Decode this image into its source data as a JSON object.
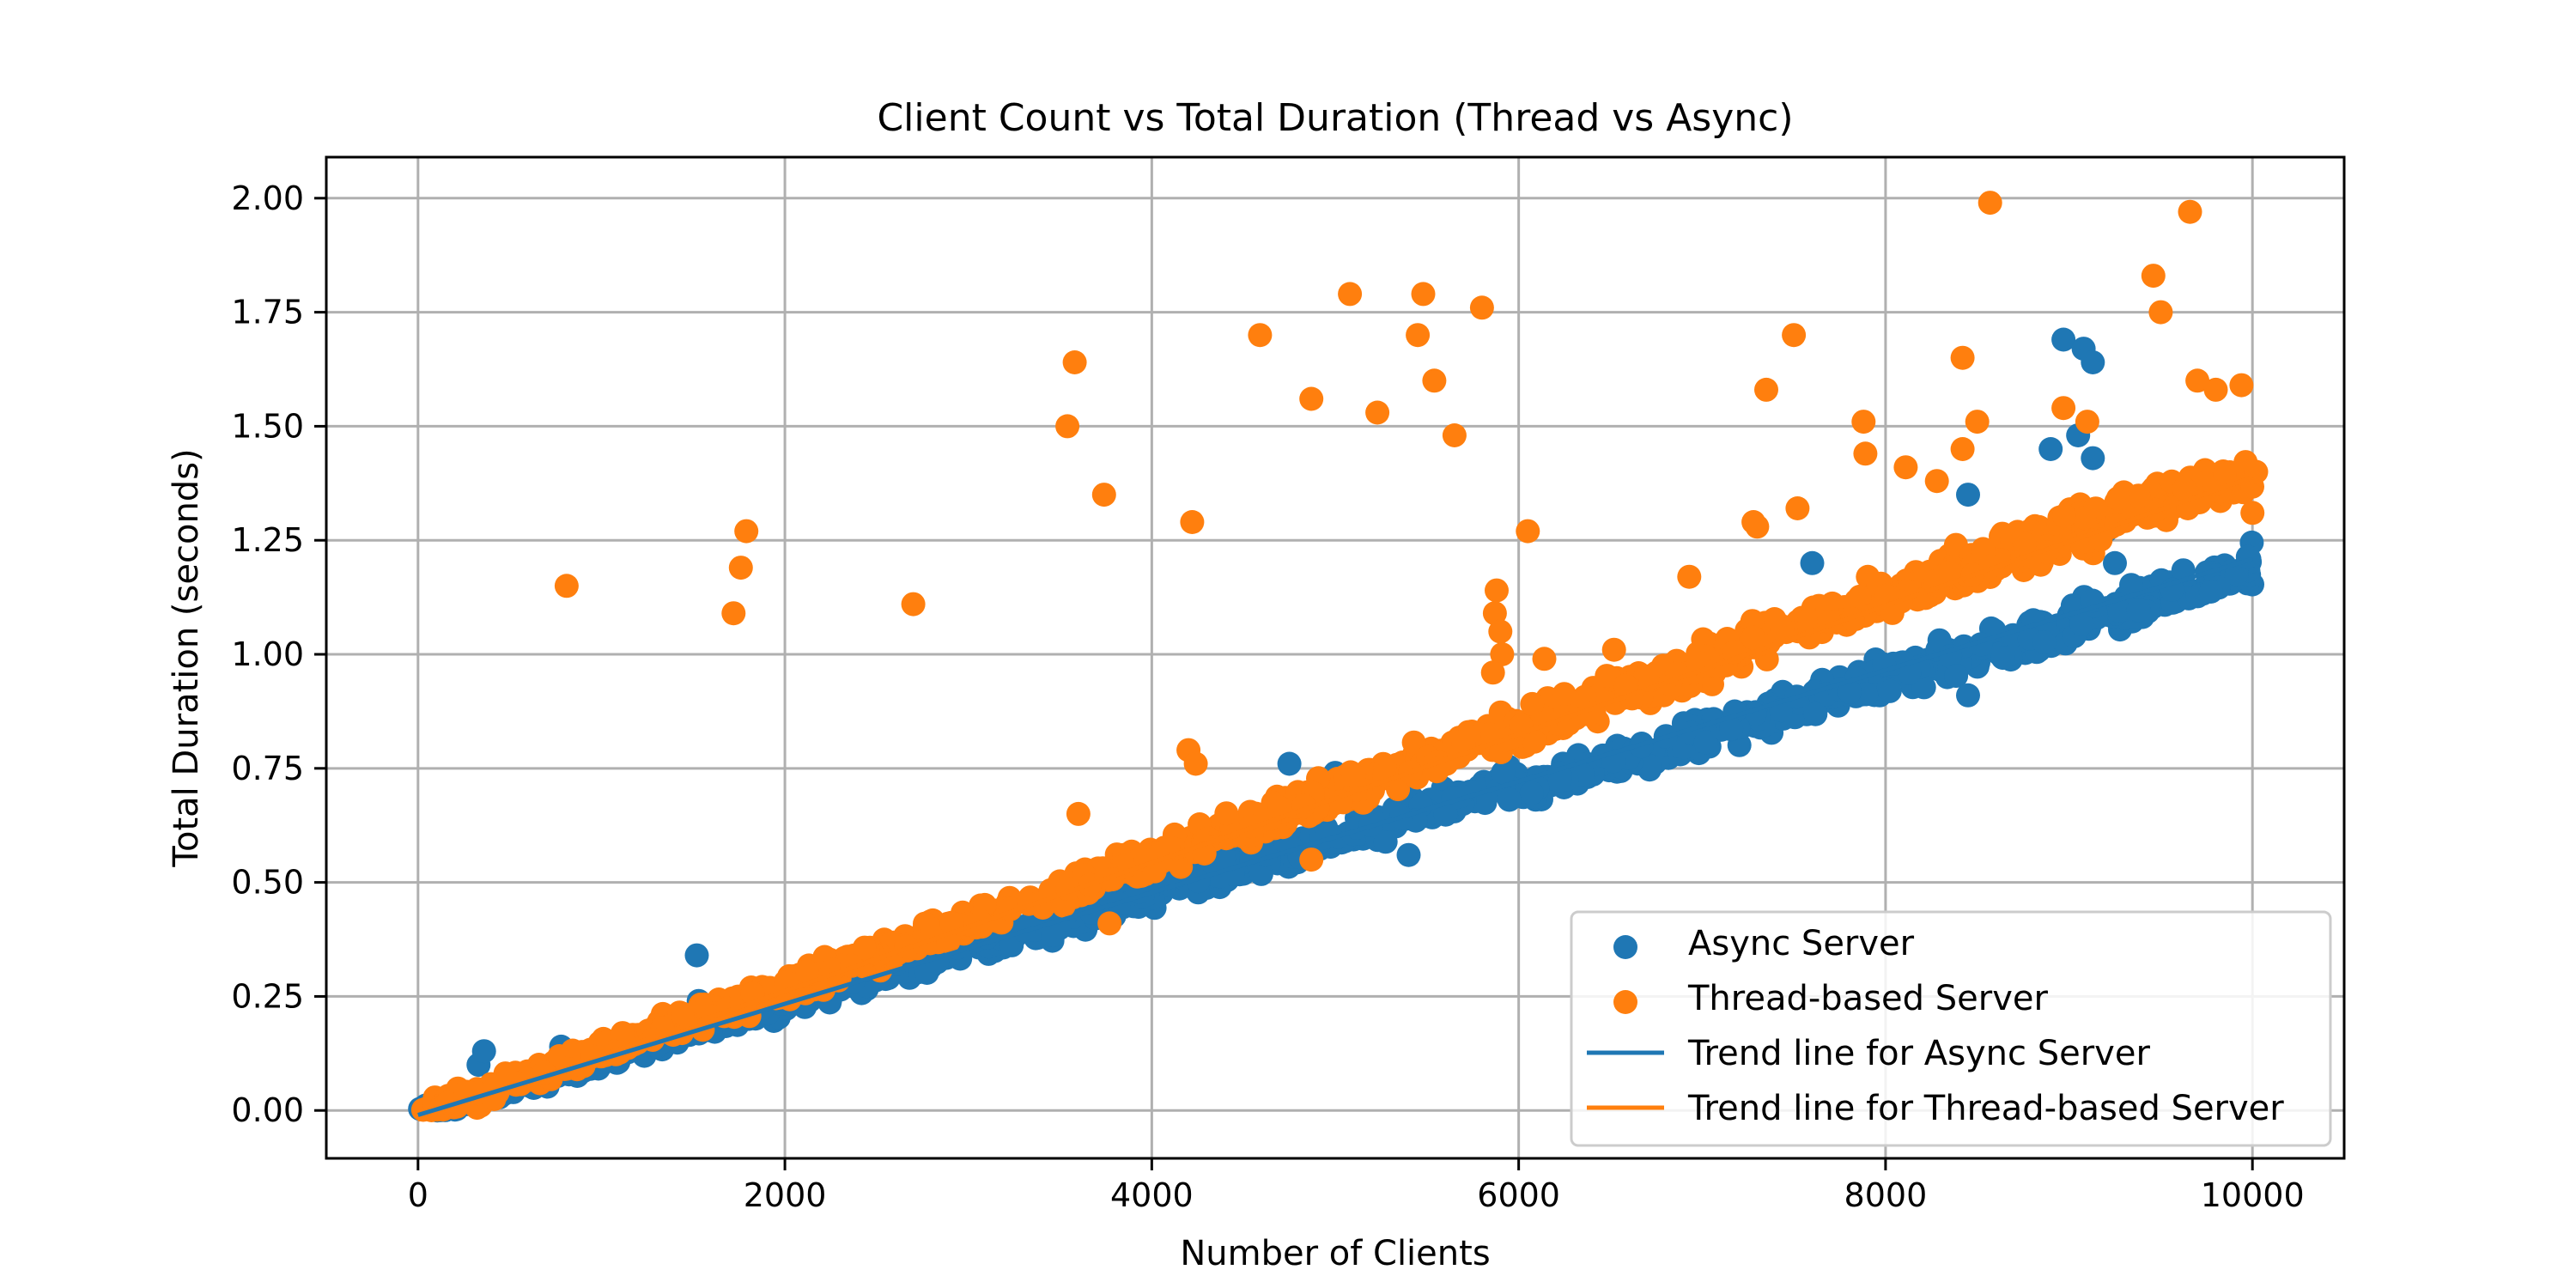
{
  "chart_data": {
    "type": "scatter",
    "title": "Client Count vs Total Duration (Thread vs Async)",
    "xlabel": "Number of Clients",
    "ylabel": "Total Duration (seconds)",
    "xlim": [
      -500,
      10500
    ],
    "ylim": [
      -0.105,
      2.09
    ],
    "x_ticks": [
      0,
      2000,
      4000,
      6000,
      8000,
      10000
    ],
    "x_tick_labels": [
      "0",
      "2000",
      "4000",
      "6000",
      "8000",
      "10000"
    ],
    "y_ticks": [
      0.0,
      0.25,
      0.5,
      0.75,
      1.0,
      1.25,
      1.5,
      1.75,
      2.0
    ],
    "y_tick_labels": [
      "0.00",
      "0.25",
      "0.50",
      "0.75",
      "1.00",
      "1.25",
      "1.50",
      "1.75",
      "2.00"
    ],
    "grid": true,
    "legend_position": "lower-right",
    "series": [
      {
        "name": "Async Server",
        "kind": "scatter",
        "color": "#1f77b4",
        "trend_slope": 0.0001219,
        "trend_intercept": -0.01,
        "band_spread": 0.018,
        "band_drift": 2e-06,
        "outliers": [
          [
            330,
            0.1
          ],
          [
            360,
            0.13
          ],
          [
            780,
            0.14
          ],
          [
            1520,
            0.34
          ],
          [
            1530,
            0.24
          ],
          [
            4750,
            0.76
          ],
          [
            5000,
            0.74
          ],
          [
            4950,
            0.62
          ],
          [
            5400,
            0.56
          ],
          [
            7600,
            1.2
          ],
          [
            8450,
            0.91
          ],
          [
            8450,
            1.35
          ],
          [
            8900,
            1.45
          ],
          [
            8970,
            1.69
          ],
          [
            9080,
            1.67
          ],
          [
            9130,
            1.64
          ],
          [
            9130,
            1.43
          ],
          [
            9050,
            1.48
          ],
          [
            9200,
            1.27
          ],
          [
            9250,
            1.2
          ]
        ]
      },
      {
        "name": "Thread-based Server",
        "kind": "scatter",
        "color": "#ff7f0e",
        "trend_slope": 0.0001408,
        "trend_intercept": -0.02,
        "band_spread": 0.02,
        "band_drift": 2.5e-06,
        "outliers": [
          [
            810,
            1.15
          ],
          [
            1720,
            1.09
          ],
          [
            1760,
            1.19
          ],
          [
            1790,
            1.27
          ],
          [
            2700,
            1.11
          ],
          [
            3540,
            1.5
          ],
          [
            3580,
            1.64
          ],
          [
            3740,
            1.35
          ],
          [
            4220,
            1.29
          ],
          [
            4590,
            1.7
          ],
          [
            4870,
            1.56
          ],
          [
            5080,
            1.79
          ],
          [
            5230,
            1.53
          ],
          [
            5450,
            1.7
          ],
          [
            5480,
            1.79
          ],
          [
            5540,
            1.6
          ],
          [
            5650,
            1.48
          ],
          [
            5800,
            1.76
          ],
          [
            6050,
            1.27
          ],
          [
            7350,
            1.58
          ],
          [
            7500,
            1.7
          ],
          [
            7520,
            1.32
          ],
          [
            7880,
            1.51
          ],
          [
            8420,
            1.65
          ],
          [
            8500,
            1.51
          ],
          [
            8570,
            1.99
          ],
          [
            8970,
            1.54
          ],
          [
            9460,
            1.83
          ],
          [
            9500,
            1.75
          ],
          [
            9660,
            1.97
          ],
          [
            9700,
            1.6
          ],
          [
            9800,
            1.58
          ],
          [
            9940,
            1.59
          ],
          [
            3770,
            0.41
          ],
          [
            4870,
            0.55
          ],
          [
            4200,
            0.79
          ],
          [
            4240,
            0.76
          ],
          [
            3600,
            0.65
          ],
          [
            5880,
            1.14
          ],
          [
            5870,
            1.09
          ],
          [
            5900,
            1.05
          ],
          [
            5910,
            1.0
          ],
          [
            5860,
            0.96
          ],
          [
            6140,
            0.99
          ],
          [
            6520,
            1.01
          ],
          [
            6930,
            1.17
          ],
          [
            7280,
            1.29
          ],
          [
            7300,
            1.28
          ],
          [
            7890,
            1.44
          ],
          [
            8110,
            1.41
          ],
          [
            8280,
            1.38
          ],
          [
            8420,
            1.45
          ],
          [
            9100,
            1.51
          ],
          [
            10000,
            1.31
          ],
          [
            10020,
            1.4
          ]
        ]
      },
      {
        "name": "Trend line for Async Server",
        "kind": "line",
        "color": "#1f77b4",
        "x": [
          0,
          10000
        ],
        "y": [
          -0.01,
          1.209
        ]
      },
      {
        "name": "Trend line for Thread-based Server",
        "kind": "line",
        "color": "#ff7f0e",
        "x": [
          0,
          10000
        ],
        "y": [
          -0.02,
          1.388
        ]
      }
    ]
  }
}
